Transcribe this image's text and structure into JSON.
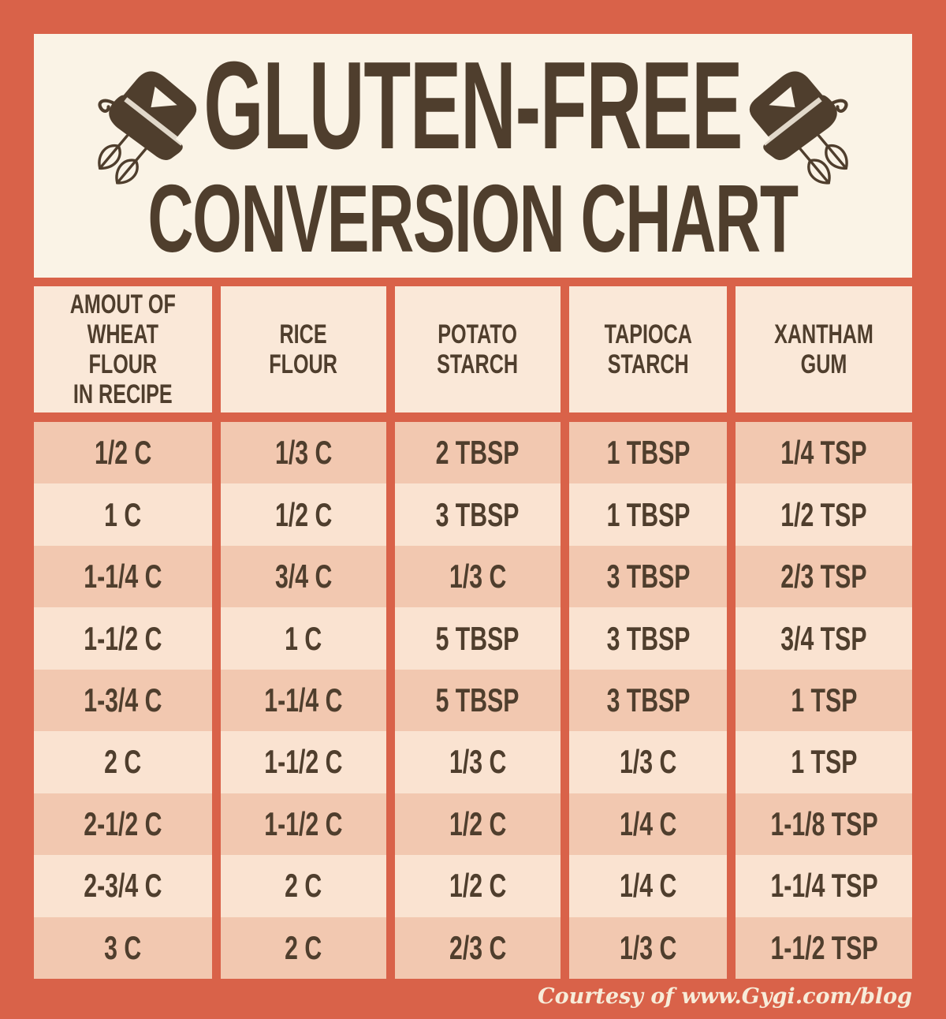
{
  "poster": {
    "title_line1": "GLUTEN-FREE",
    "title_line2": "CONVERSION CHART",
    "footer_credit": "Courtesy of www.Gygi.com/blog"
  },
  "icons": {
    "left": "hand-mixer-icon",
    "right": "hand-mixer-icon"
  },
  "table": {
    "columns": [
      "AMOUT OF\nWHEAT FLOUR\nIN RECIPE",
      "RICE\nFLOUR",
      "POTATO\nSTARCH",
      "TAPIOCA\nSTARCH",
      "XANTHAM\nGUM"
    ],
    "rows": [
      [
        "1/2 C",
        "1/3 C",
        "2 TBSP",
        "1 TBSP",
        "1/4 TSP"
      ],
      [
        "1 C",
        "1/2 C",
        "3 TBSP",
        "1 TBSP",
        "1/2 TSP"
      ],
      [
        "1-1/4 C",
        "3/4 C",
        "1/3 C",
        "3 TBSP",
        "2/3 TSP"
      ],
      [
        "1-1/2 C",
        "1 C",
        "5 TBSP",
        "3 TBSP",
        "3/4 TSP"
      ],
      [
        "1-3/4 C",
        "1-1/4 C",
        "5 TBSP",
        "3 TBSP",
        "1 TSP"
      ],
      [
        "2 C",
        "1-1/2 C",
        "1/3 C",
        "1/3 C",
        "1 TSP"
      ],
      [
        "2-1/2 C",
        "1-1/2 C",
        "1/2 C",
        "1/4 C",
        "1-1/8 TSP"
      ],
      [
        "2-3/4 C",
        "2 C",
        "1/2 C",
        "1/4 C",
        "1-1/4 TSP"
      ],
      [
        "3 C",
        "2 C",
        "2/3 C",
        "1/3 C",
        "1-1/2 TSP"
      ]
    ]
  },
  "colors": {
    "frame_orange": "#D96249",
    "card_cream": "#FAF3E6",
    "header_cell_bg": "#FAE8D8",
    "row_dark": "#F2C8B0",
    "row_light": "#FAE3D1",
    "text_brown": "#4F3E2D",
    "footer_cream": "#F7ECD9"
  }
}
